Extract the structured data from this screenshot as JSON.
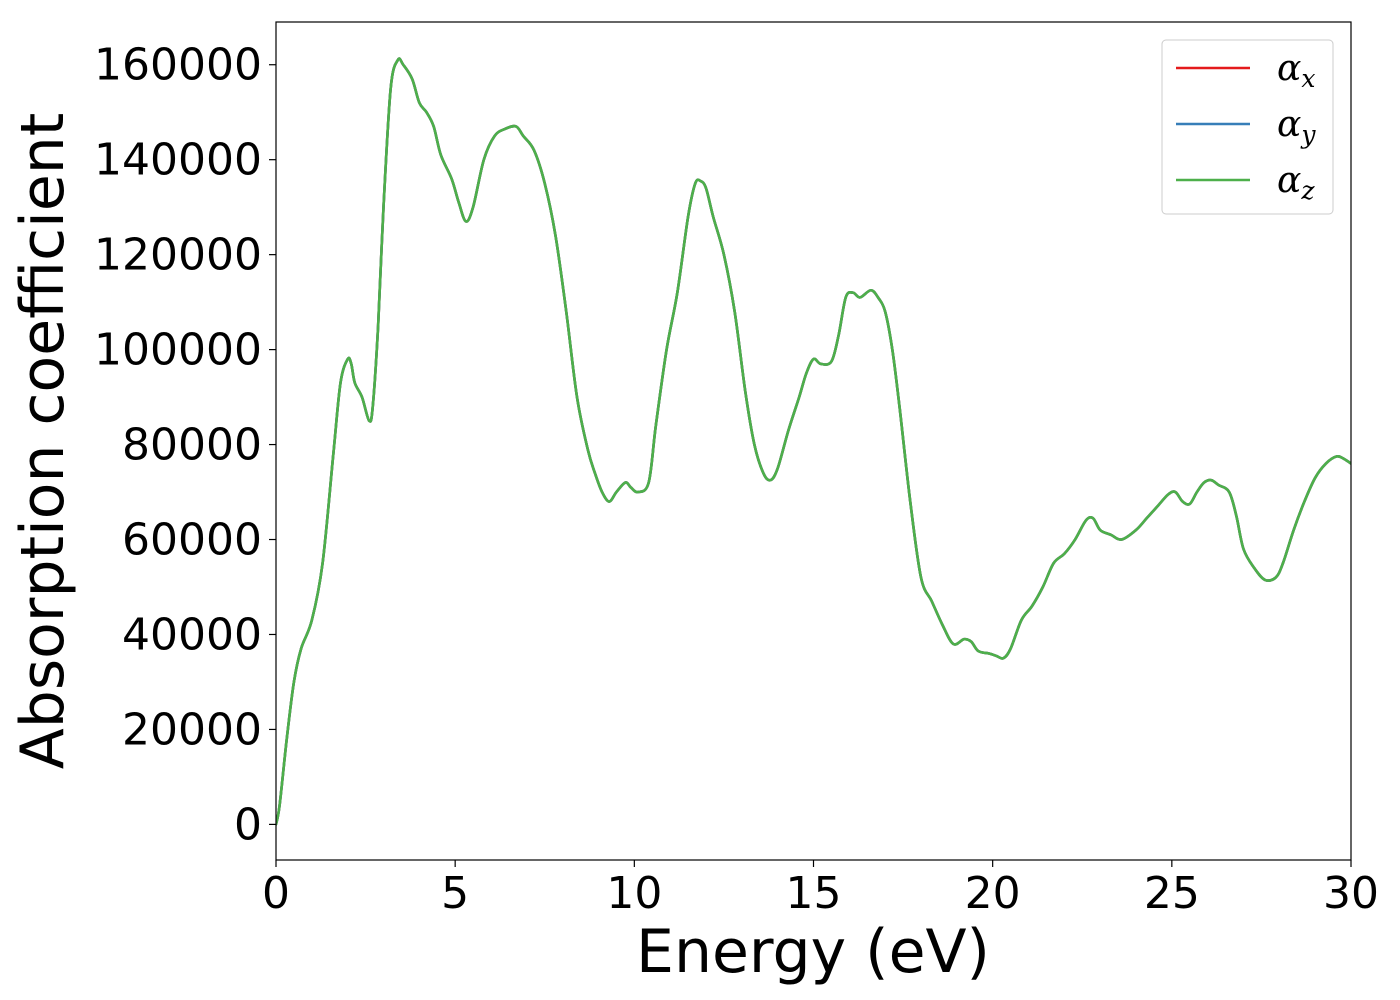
{
  "chart_data": {
    "type": "line",
    "xlabel": "Energy (eV)",
    "ylabel": "Absorption coefficient",
    "xlim": [
      0,
      30
    ],
    "ylim": [
      -7500,
      169000
    ],
    "xticks": [
      0,
      5,
      10,
      15,
      20,
      25,
      30
    ],
    "yticks": [
      0,
      20000,
      40000,
      60000,
      80000,
      100000,
      120000,
      140000,
      160000
    ],
    "x_tick_labels": [
      "0",
      "5",
      "10",
      "15",
      "20",
      "25",
      "30"
    ],
    "y_tick_labels": [
      "0",
      "20000",
      "40000",
      "60000",
      "80000",
      "100000",
      "120000",
      "140000",
      "160000"
    ],
    "grid": false,
    "legend_position": "top-right",
    "series": [
      {
        "name": "αx",
        "symbol": "α",
        "subscript": "x",
        "color": "#e41a1c",
        "x": [
          0,
          0.1,
          0.3,
          0.5,
          0.7,
          1.0,
          1.3,
          1.6,
          1.8,
          2.0,
          2.1,
          2.2,
          2.4,
          2.6,
          2.7,
          2.85,
          3.0,
          3.2,
          3.4,
          3.55,
          3.8,
          4.0,
          4.2,
          4.4,
          4.6,
          4.9,
          5.1,
          5.3,
          5.5,
          5.8,
          6.1,
          6.4,
          6.7,
          6.9,
          7.2,
          7.5,
          7.8,
          8.1,
          8.4,
          8.7,
          8.9,
          9.1,
          9.3,
          9.5,
          9.75,
          9.9,
          10.1,
          10.4,
          10.6,
          10.9,
          11.2,
          11.5,
          11.7,
          11.85,
          12.0,
          12.2,
          12.5,
          12.8,
          13.1,
          13.35,
          13.6,
          13.8,
          14.0,
          14.3,
          14.6,
          14.8,
          15.0,
          15.2,
          15.5,
          15.7,
          15.9,
          16.1,
          16.3,
          16.6,
          16.8,
          17.0,
          17.2,
          17.4,
          17.7,
          18.0,
          18.3,
          18.6,
          18.9,
          19.2,
          19.4,
          19.6,
          19.9,
          20.1,
          20.3,
          20.5,
          20.8,
          21.1,
          21.4,
          21.7,
          22.0,
          22.3,
          22.6,
          22.8,
          23.0,
          23.3,
          23.6,
          24.0,
          24.3,
          24.6,
          24.9,
          25.1,
          25.3,
          25.5,
          25.7,
          25.9,
          26.1,
          26.3,
          26.6,
          26.8,
          27.0,
          27.3,
          27.6,
          27.9,
          28.1,
          28.4,
          28.7,
          29.0,
          29.3,
          29.6,
          29.8,
          30.0
        ],
        "y": [
          0,
          4000,
          18000,
          30000,
          37000,
          43000,
          55000,
          78000,
          93000,
          98000,
          97000,
          93000,
          90000,
          85000,
          88000,
          105000,
          130000,
          155000,
          161000,
          160000,
          157000,
          152000,
          150000,
          147000,
          141000,
          136000,
          131000,
          127000,
          130000,
          140000,
          145000,
          146500,
          147000,
          145000,
          142000,
          135000,
          124000,
          108000,
          90000,
          79000,
          74000,
          70000,
          68000,
          70000,
          72000,
          71000,
          70000,
          72000,
          84000,
          100000,
          112000,
          128000,
          135000,
          135500,
          134000,
          128000,
          120000,
          108000,
          91000,
          80000,
          74000,
          72500,
          75000,
          83000,
          90000,
          95000,
          98000,
          97000,
          97500,
          103000,
          111000,
          112000,
          111000,
          112500,
          111000,
          108000,
          100000,
          88000,
          68000,
          52000,
          47000,
          42000,
          38000,
          39000,
          38500,
          36500,
          36000,
          35500,
          35000,
          37000,
          43000,
          46000,
          50000,
          55000,
          57000,
          60000,
          64000,
          64500,
          62000,
          61000,
          60000,
          62000,
          64500,
          67000,
          69500,
          70000,
          68000,
          67500,
          70000,
          72000,
          72500,
          71500,
          70000,
          65000,
          58000,
          54000,
          51500,
          52000,
          55000,
          62000,
          68000,
          73000,
          76000,
          77500,
          77000,
          76000
        ]
      },
      {
        "name": "αy",
        "symbol": "α",
        "subscript": "y",
        "color": "#377eb8",
        "x": [
          0,
          0.1,
          0.3,
          0.5,
          0.7,
          1.0,
          1.3,
          1.6,
          1.8,
          2.0,
          2.1,
          2.2,
          2.4,
          2.6,
          2.7,
          2.85,
          3.0,
          3.2,
          3.4,
          3.55,
          3.8,
          4.0,
          4.2,
          4.4,
          4.6,
          4.9,
          5.1,
          5.3,
          5.5,
          5.8,
          6.1,
          6.4,
          6.7,
          6.9,
          7.2,
          7.5,
          7.8,
          8.1,
          8.4,
          8.7,
          8.9,
          9.1,
          9.3,
          9.5,
          9.75,
          9.9,
          10.1,
          10.4,
          10.6,
          10.9,
          11.2,
          11.5,
          11.7,
          11.85,
          12.0,
          12.2,
          12.5,
          12.8,
          13.1,
          13.35,
          13.6,
          13.8,
          14.0,
          14.3,
          14.6,
          14.8,
          15.0,
          15.2,
          15.5,
          15.7,
          15.9,
          16.1,
          16.3,
          16.6,
          16.8,
          17.0,
          17.2,
          17.4,
          17.7,
          18.0,
          18.3,
          18.6,
          18.9,
          19.2,
          19.4,
          19.6,
          19.9,
          20.1,
          20.3,
          20.5,
          20.8,
          21.1,
          21.4,
          21.7,
          22.0,
          22.3,
          22.6,
          22.8,
          23.0,
          23.3,
          23.6,
          24.0,
          24.3,
          24.6,
          24.9,
          25.1,
          25.3,
          25.5,
          25.7,
          25.9,
          26.1,
          26.3,
          26.6,
          26.8,
          27.0,
          27.3,
          27.6,
          27.9,
          28.1,
          28.4,
          28.7,
          29.0,
          29.3,
          29.6,
          29.8,
          30.0
        ],
        "y": [
          0,
          4000,
          18000,
          30000,
          37000,
          43000,
          55000,
          78000,
          93000,
          98000,
          97000,
          93000,
          90000,
          85000,
          88000,
          105000,
          130000,
          155000,
          161000,
          160000,
          157000,
          152000,
          150000,
          147000,
          141000,
          136000,
          131000,
          127000,
          130000,
          140000,
          145000,
          146500,
          147000,
          145000,
          142000,
          135000,
          124000,
          108000,
          90000,
          79000,
          74000,
          70000,
          68000,
          70000,
          72000,
          71000,
          70000,
          72000,
          84000,
          100000,
          112000,
          128000,
          135000,
          135500,
          134000,
          128000,
          120000,
          108000,
          91000,
          80000,
          74000,
          72500,
          75000,
          83000,
          90000,
          95000,
          98000,
          97000,
          97500,
          103000,
          111000,
          112000,
          111000,
          112500,
          111000,
          108000,
          100000,
          88000,
          68000,
          52000,
          47000,
          42000,
          38000,
          39000,
          38500,
          36500,
          36000,
          35500,
          35000,
          37000,
          43000,
          46000,
          50000,
          55000,
          57000,
          60000,
          64000,
          64500,
          62000,
          61000,
          60000,
          62000,
          64500,
          67000,
          69500,
          70000,
          68000,
          67500,
          70000,
          72000,
          72500,
          71500,
          70000,
          65000,
          58000,
          54000,
          51500,
          52000,
          55000,
          62000,
          68000,
          73000,
          76000,
          77500,
          77000,
          76000
        ]
      },
      {
        "name": "αz",
        "symbol": "α",
        "subscript": "z",
        "color": "#4daf4a",
        "x": [
          0,
          0.1,
          0.3,
          0.5,
          0.7,
          1.0,
          1.3,
          1.6,
          1.8,
          2.0,
          2.1,
          2.2,
          2.4,
          2.6,
          2.7,
          2.85,
          3.0,
          3.2,
          3.4,
          3.55,
          3.8,
          4.0,
          4.2,
          4.4,
          4.6,
          4.9,
          5.1,
          5.3,
          5.5,
          5.8,
          6.1,
          6.4,
          6.7,
          6.9,
          7.2,
          7.5,
          7.8,
          8.1,
          8.4,
          8.7,
          8.9,
          9.1,
          9.3,
          9.5,
          9.75,
          9.9,
          10.1,
          10.4,
          10.6,
          10.9,
          11.2,
          11.5,
          11.7,
          11.85,
          12.0,
          12.2,
          12.5,
          12.8,
          13.1,
          13.35,
          13.6,
          13.8,
          14.0,
          14.3,
          14.6,
          14.8,
          15.0,
          15.2,
          15.5,
          15.7,
          15.9,
          16.1,
          16.3,
          16.6,
          16.8,
          17.0,
          17.2,
          17.4,
          17.7,
          18.0,
          18.3,
          18.6,
          18.9,
          19.2,
          19.4,
          19.6,
          19.9,
          20.1,
          20.3,
          20.5,
          20.8,
          21.1,
          21.4,
          21.7,
          22.0,
          22.3,
          22.6,
          22.8,
          23.0,
          23.3,
          23.6,
          24.0,
          24.3,
          24.6,
          24.9,
          25.1,
          25.3,
          25.5,
          25.7,
          25.9,
          26.1,
          26.3,
          26.6,
          26.8,
          27.0,
          27.3,
          27.6,
          27.9,
          28.1,
          28.4,
          28.7,
          29.0,
          29.3,
          29.6,
          29.8,
          30.0
        ],
        "y": [
          0,
          4000,
          18000,
          30000,
          37000,
          43000,
          55000,
          78000,
          93000,
          98000,
          97000,
          93000,
          90000,
          85000,
          88000,
          105000,
          130000,
          155000,
          161000,
          160000,
          157000,
          152000,
          150000,
          147000,
          141000,
          136000,
          131000,
          127000,
          130000,
          140000,
          145000,
          146500,
          147000,
          145000,
          142000,
          135000,
          124000,
          108000,
          90000,
          79000,
          74000,
          70000,
          68000,
          70000,
          72000,
          71000,
          70000,
          72000,
          84000,
          100000,
          112000,
          128000,
          135000,
          135500,
          134000,
          128000,
          120000,
          108000,
          91000,
          80000,
          74000,
          72500,
          75000,
          83000,
          90000,
          95000,
          98000,
          97000,
          97500,
          103000,
          111000,
          112000,
          111000,
          112500,
          111000,
          108000,
          100000,
          88000,
          68000,
          52000,
          47000,
          42000,
          38000,
          39000,
          38500,
          36500,
          36000,
          35500,
          35000,
          37000,
          43000,
          46000,
          50000,
          55000,
          57000,
          60000,
          64000,
          64500,
          62000,
          61000,
          60000,
          62000,
          64500,
          67000,
          69500,
          70000,
          68000,
          67500,
          70000,
          72000,
          72500,
          71500,
          70000,
          65000,
          58000,
          54000,
          51500,
          52000,
          55000,
          62000,
          68000,
          73000,
          76000,
          77500,
          77000,
          76000
        ]
      }
    ]
  }
}
